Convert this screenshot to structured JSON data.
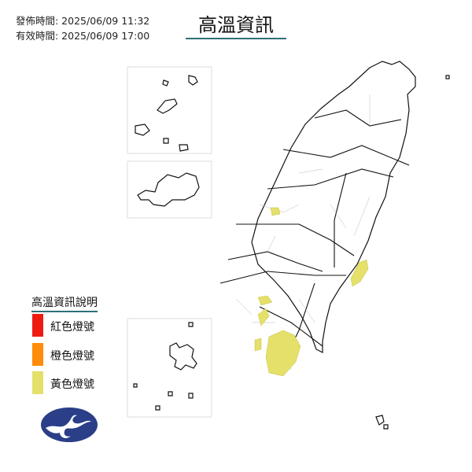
{
  "header": {
    "issued_label": "發佈時間: 2025/06/09 11:32",
    "valid_label": "有效時間: 2025/06/09 17:00",
    "title": "高溫資訊"
  },
  "legend": {
    "title": "高溫資訊說明",
    "items": [
      {
        "label": "紅色燈號",
        "color": "#ee1c10"
      },
      {
        "label": "橙色燈號",
        "color": "#ff8c0a"
      },
      {
        "label": "黃色燈號",
        "color": "#e4e06a"
      }
    ]
  },
  "map": {
    "region": "Taiwan",
    "warning_level_shown": "黃色燈號",
    "highlight_color": "#e4e06a"
  },
  "logo": {
    "name": "Central Weather Administration emblem"
  }
}
